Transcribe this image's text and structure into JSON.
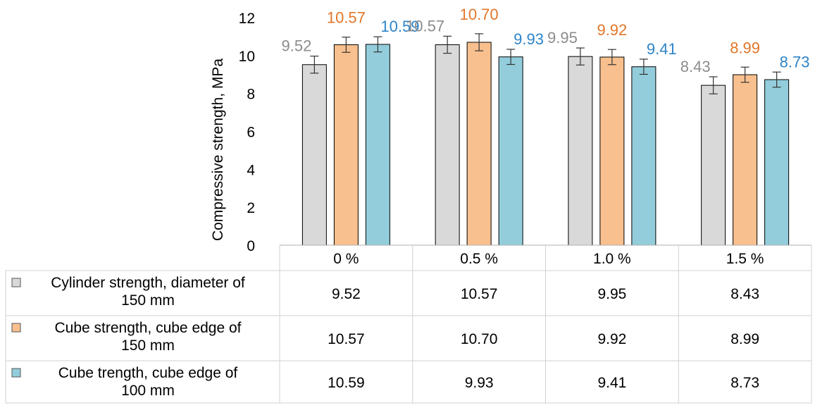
{
  "chart_data": {
    "type": "bar",
    "title": "",
    "xlabel": "",
    "ylabel": "Compressive strength, MPa",
    "ylim": [
      0,
      12
    ],
    "yticks": [
      0,
      2,
      4,
      6,
      8,
      10,
      12
    ],
    "grid": false,
    "legend": "data-table",
    "error_bars": true,
    "categories": [
      "0 %",
      "0.5 %",
      "1.0 %",
      "1.5 %"
    ],
    "series": [
      {
        "name": "Cylinder strength, diameter of 150 mm",
        "color": "#d9d9d9",
        "label_color": "#8c8c8c",
        "values": [
          9.52,
          10.57,
          9.95,
          8.43
        ],
        "labels": [
          "9.52",
          "10.57",
          "9.95",
          "8.43"
        ],
        "errors": [
          0.45,
          0.45,
          0.45,
          0.45
        ]
      },
      {
        "name": "Cube strength, cube edge of 150 mm",
        "color": "#f8c08e",
        "label_color": "#e2762a",
        "values": [
          10.57,
          10.7,
          9.92,
          8.99
        ],
        "labels": [
          "10.57",
          "10.70",
          "9.92",
          "8.99"
        ],
        "errors": [
          0.4,
          0.45,
          0.4,
          0.4
        ]
      },
      {
        "name": "Cube trength, cube edge of 100 mm",
        "color": "#93cddb",
        "label_color": "#2e84c8",
        "values": [
          10.59,
          9.93,
          9.41,
          8.73
        ],
        "labels": [
          "10.59",
          "9.93",
          "9.41",
          "8.73"
        ],
        "errors": [
          0.4,
          0.4,
          0.4,
          0.4
        ]
      }
    ]
  }
}
